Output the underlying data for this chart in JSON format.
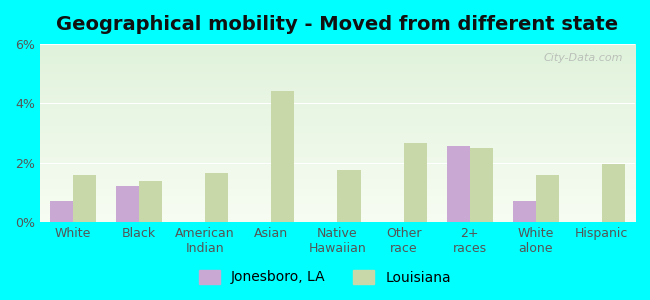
{
  "title": "Geographical mobility - Moved from different state",
  "categories": [
    "White",
    "Black",
    "American\nIndian",
    "Asian",
    "Native\nHawaiian",
    "Other\nrace",
    "2+\nraces",
    "White\nalone",
    "Hispanic"
  ],
  "jonesboro_values": [
    0.7,
    1.2,
    0.0,
    0.0,
    0.0,
    0.0,
    2.55,
    0.7,
    0.0
  ],
  "louisiana_values": [
    1.6,
    1.4,
    1.65,
    4.4,
    1.75,
    2.65,
    2.5,
    1.6,
    1.95
  ],
  "jonesboro_color": "#c9a8d4",
  "louisiana_color": "#c8d8a8",
  "outer_bg": "#00ffff",
  "ylim": [
    0,
    6
  ],
  "yticks": [
    0,
    2,
    4,
    6
  ],
  "ytick_labels": [
    "0%",
    "2%",
    "4%",
    "6%"
  ],
  "bar_width": 0.35,
  "title_fontsize": 14,
  "tick_fontsize": 9,
  "legend_fontsize": 10
}
